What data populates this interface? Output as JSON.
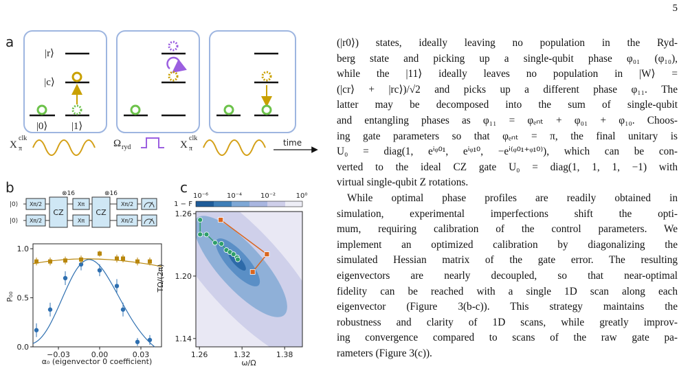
{
  "page_number": "5",
  "figure": {
    "a": {
      "label": "a",
      "levels": {
        "r": "|r⟩",
        "c": "|c⟩",
        "zero": "|0⟩",
        "one": "|1⟩"
      },
      "pulses": {
        "x_base": "X",
        "x_sup": "clk",
        "x_sub": "π",
        "ryd_base": "Ω",
        "ryd_sub": "ryd",
        "time": "time"
      }
    },
    "b": {
      "label": "b",
      "circuit": {
        "input": "|0⟩",
        "x_half": "Xπ/2",
        "x_pi": "Xπ",
        "cz": "CZ",
        "repeat": "⊗16"
      },
      "plot": {
        "y_label": "P₀₀",
        "x_label": "α₀ (eigenvector 0 coefficient)",
        "xlim": [
          -0.0485,
          0.045
        ],
        "ylim": [
          0,
          1.05
        ],
        "xticks": [
          {
            "value": -0.03,
            "label": "−0.03"
          },
          {
            "value": 0,
            "label": "0.00"
          },
          {
            "value": 0.03,
            "label": "0.03"
          }
        ],
        "yticks": [
          {
            "value": 0,
            "label": "0.0"
          },
          {
            "value": 0.5,
            "label": "0.5"
          },
          {
            "value": 1,
            "label": "1.0"
          }
        ],
        "x": [
          -0.046,
          -0.036,
          -0.025,
          -0.0135,
          0,
          0.0125,
          0.017,
          0.0275,
          0.0365
        ],
        "series": [
          {
            "color": "#2e6fb0",
            "values": [
              0.17,
              0.38,
              0.7,
              0.84,
              0.78,
              0.62,
              0.38,
              0.05,
              0.07
            ],
            "errors": [
              0.07,
              0.07,
              0.07,
              0.06,
              0.06,
              0.07,
              0.07,
              0.04,
              0.05
            ]
          },
          {
            "color": "#b8860b",
            "values": [
              0.87,
              0.87,
              0.88,
              0.89,
              0.95,
              0.9,
              0.9,
              0.87,
              0.87
            ],
            "errors": [
              0.04,
              0.04,
              0.04,
              0.04,
              0.03,
              0.04,
              0.04,
              0.04,
              0.04
            ]
          }
        ]
      }
    },
    "c": {
      "label": "c",
      "colorbar": {
        "title": "1 − F",
        "labels": [
          "10⁻⁶",
          "10⁻⁴",
          "10⁻²",
          "10⁰"
        ]
      },
      "plot": {
        "x_label": "ω/Ω",
        "y_label": "TΩ/(2π)",
        "xlim": [
          1.255,
          1.405
        ],
        "ylim": [
          1.132,
          1.262
        ],
        "xticks": [
          1.26,
          1.32,
          1.38
        ],
        "yticks": [
          {
            "value": 1.14,
            "label": "1.14"
          },
          {
            "value": 1.2,
            "label": "1.20"
          },
          {
            "value": 1.26,
            "label": "1.26"
          }
        ],
        "series": [
          {
            "color": "#2e9e6a",
            "x": [
              1.261,
              1.261,
              1.27,
              1.282,
              1.291,
              1.298,
              1.303,
              1.308,
              1.313,
              1.314
            ],
            "y": [
              1.254,
              1.24,
              1.24,
              1.232,
              1.231,
              1.225,
              1.223,
              1.221,
              1.218,
              1.216
            ]
          },
          {
            "color": "#d9651e",
            "x": [
              1.29,
              1.355,
              1.335
            ],
            "y": [
              1.254,
              1.221,
              1.204
            ]
          }
        ]
      }
    }
  },
  "text": {
    "paragraphs": [
      [
        "(|r0⟩) states, ideally leaving no population in the Ryd-",
        "berg state and picking up a single-qubit phase φ₀₁ (φ₁₀),",
        "while the |11⟩ ideally leaves no population in |W⟩ =",
        "(|cr⟩ + |rc⟩)/√2 and picks up a different phase φ₁₁. The",
        "latter may be decomposed into the sum of single-qubit",
        "and entangling phases as φ₁₁ = φₑₙₜ + φ₀₁ + φ₁₀. Choos-",
        "ing gate parameters so that φₑₙₜ = π, the final unitary is",
        "U₀ = diag(1, eⁱᵠ⁰¹, eⁱᵠ¹⁰, −eⁱ⁽ᵠ⁰¹⁺ᵠ¹⁰⁾), which can be con-",
        "verted to the ideal CZ gate U₀ = diag(1, 1, 1, −1) with",
        "virtual single-qubit Z rotations."
      ],
      [
        "While optimal phase profiles are readily obtained in",
        "simulation, experimental imperfections shift the opti-",
        "mum, requiring calibration of the control parameters. We",
        "implement an optimized calibration by diagonalizing the",
        "simulated Hessian matrix of the gate error. The resulting",
        "eigenvectors are nearly decoupled, so that near-optimal",
        "fidelity can be reached with a single 1D scan along each",
        "eigenvector (Figure 3(b-c)). This strategy maintains the",
        "robustness and clarity of 1D scans, while greatly improv-",
        "ing convergence compared to scans of the raw gate pa-",
        "rameters (Figure 3(c))."
      ]
    ]
  }
}
